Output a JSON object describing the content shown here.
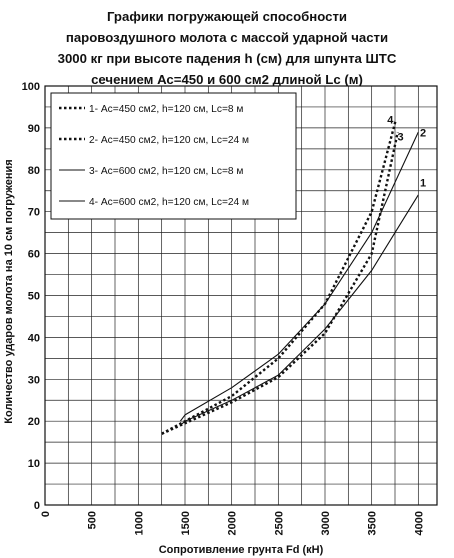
{
  "chart_data": {
    "type": "line",
    "title_lines": [
      "Графики погружающей способности",
      "паровоздушного молота с массой ударной части",
      "3000 кг при высоте падения h (см) для шпунта ШТС",
      "сечением Ас=450 и 600 см2 длиной Lc (м)"
    ],
    "xlabel": "Сопротивление грунта Fd (кН)",
    "ylabel": "Количество ударов молота на 10 см погружения",
    "xlim": [
      0,
      4200
    ],
    "ylim": [
      0,
      100
    ],
    "x_ticks": [
      0,
      500,
      1000,
      1500,
      2000,
      2500,
      3000,
      3500,
      4000
    ],
    "y_ticks": [
      0,
      10,
      20,
      30,
      40,
      50,
      60,
      70,
      80,
      90,
      100
    ],
    "grid": true,
    "legend_position": "top-left",
    "series": [
      {
        "name": "1- Ас=450 см2, h=120 см, Lc=8 м",
        "tag": "1",
        "dash": "dotted",
        "x": [
          1250,
          1500,
          2000,
          2500,
          3000,
          3500,
          3780
        ],
        "y": [
          17,
          19.5,
          24.5,
          30.5,
          41,
          60,
          89
        ]
      },
      {
        "name": "2- Ас=450 см2, h=120 см, Lc=24 м",
        "tag": "2",
        "dash": "dotted",
        "x": [
          1250,
          1500,
          2000,
          2500,
          3000,
          3500,
          3760
        ],
        "y": [
          17,
          20,
          26,
          35,
          48,
          70,
          92
        ]
      },
      {
        "name": "3- Ас=600 см2, h=120 см, Lc=8 м",
        "tag": "3",
        "dash": "solid",
        "x": [
          1450,
          1500,
          2000,
          2500,
          3000,
          3500,
          4000
        ],
        "y": [
          19,
          20,
          25,
          31,
          42,
          56,
          74
        ]
      },
      {
        "name": "4- Ас=600 см2, h=120 см, Lc=24 м",
        "tag": "4",
        "dash": "solid",
        "x": [
          1450,
          1500,
          2000,
          2500,
          3000,
          3500,
          4000
        ],
        "y": [
          20,
          21.5,
          28,
          36,
          48,
          65,
          89
        ]
      }
    ],
    "series_tags": [
      {
        "tag": "1",
        "x": 4050,
        "y": 76
      },
      {
        "tag": "2",
        "x": 4050,
        "y": 88
      },
      {
        "tag": "3",
        "x": 3810,
        "y": 87
      },
      {
        "tag": "4",
        "x": 3700,
        "y": 91
      }
    ]
  }
}
